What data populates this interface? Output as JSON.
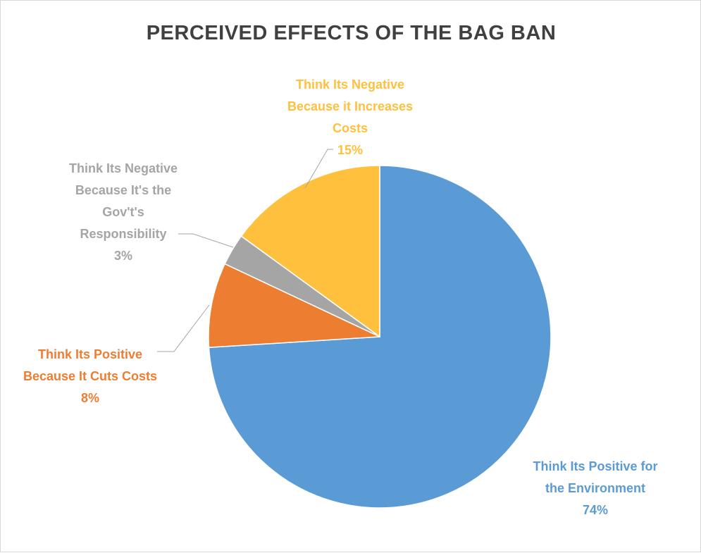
{
  "chart_data": {
    "type": "pie",
    "title": "PERCEIVED EFFECTS OF THE BAG BAN",
    "start_angle_deg": 0,
    "direction": "clockwise",
    "legend": "none",
    "slices": [
      {
        "label_lines": [
          "Think Its Positive for",
          "the Environment"
        ],
        "value": 74,
        "value_label": "74%",
        "color": "#5b9bd5"
      },
      {
        "label_lines": [
          "Think Its Positive",
          "Because It Cuts Costs"
        ],
        "value": 8,
        "value_label": "8%",
        "color": "#ed7d31"
      },
      {
        "label_lines": [
          "Think Its Negative",
          "Because It's the",
          "Gov't's",
          "Responsibility"
        ],
        "value": 3,
        "value_label": "3%",
        "color": "#a5a5a5"
      },
      {
        "label_lines": [
          "Think Its Negative",
          "Because it Increases",
          "Costs"
        ],
        "value": 15,
        "value_label": "15%",
        "color": "#ffc03e"
      }
    ]
  }
}
